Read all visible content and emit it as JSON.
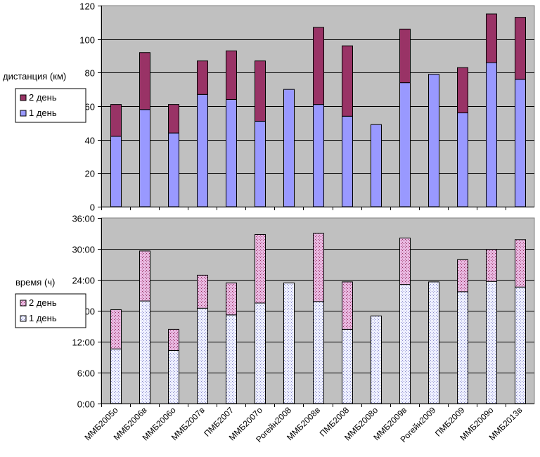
{
  "colors": {
    "plot_background": "#c0c0c0",
    "distance_day1": "#9999ff",
    "distance_day2": "#993366",
    "time_day1": "#ccccff",
    "time_day2": "#cc99cc"
  },
  "chart_data": [
    {
      "type": "bar",
      "stacked": true,
      "ylabel": "дистанция (км)",
      "ylim": [
        0,
        120
      ],
      "yticks": [
        "0",
        "20",
        "40",
        "60",
        "80",
        "100",
        "120"
      ],
      "grid": true,
      "legend_position": "left",
      "categories": [
        "ММБ2005о",
        "ММБ2006в",
        "ММБ2006о",
        "ММБ2007в",
        "ПМБ2007",
        "ММБ2007о",
        "Рогейн2008",
        "ММБ2008в",
        "ПМБ2008",
        "ММБ2008о",
        "ММБ2009в",
        "Рогейн2009",
        "ПМБ2009",
        "ММБ2009о",
        "ММБ2013в"
      ],
      "series": [
        {
          "name": "1 день",
          "values": [
            42,
            58,
            44,
            67,
            64,
            51,
            70,
            61,
            54,
            49,
            74,
            79,
            56,
            86,
            76
          ]
        },
        {
          "name": "2 день",
          "values": [
            19,
            34,
            17,
            20,
            29,
            36,
            0,
            46,
            42,
            0,
            32,
            0,
            27,
            29,
            37
          ]
        }
      ]
    },
    {
      "type": "bar",
      "stacked": true,
      "ylabel": "время (ч)",
      "ylim": [
        0,
        36
      ],
      "yticks": [
        "0:00",
        "6:00",
        "12:00",
        "18:00",
        "24:00",
        "30:00",
        "36:00"
      ],
      "grid": true,
      "legend_position": "left",
      "categories": [
        "ММБ2005о",
        "ММБ2006в",
        "ММБ2006о",
        "ММБ2007в",
        "ПМБ2007",
        "ММБ2007о",
        "Рогейн2008",
        "ММБ2008в",
        "ПМБ2008",
        "ММБ2008о",
        "ММБ2009в",
        "Рогейн2009",
        "ПМБ2009",
        "ММБ2009о",
        "ММБ2013в"
      ],
      "series": [
        {
          "name": "1 день",
          "values": [
            10.6,
            19.9,
            10.3,
            18.5,
            17.2,
            19.5,
            23.4,
            19.8,
            14.4,
            17.0,
            23.1,
            23.6,
            21.7,
            23.7,
            22.6
          ]
        },
        {
          "name": "2 день",
          "values": [
            7.6,
            9.7,
            4.1,
            6.4,
            6.2,
            13.3,
            0,
            13.2,
            9.2,
            0,
            9.0,
            0,
            6.2,
            6.2,
            9.2
          ]
        }
      ]
    }
  ]
}
